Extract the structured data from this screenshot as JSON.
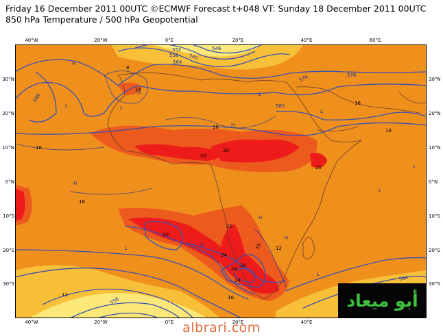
{
  "header": {
    "line1": "Friday 16 December 2011 00UTC ©ECMWF Forecast t+048 VT: Sunday 18 December 2011 00UTC",
    "line2": "850 hPa Temperature / 500 hPa Geopotential"
  },
  "axes": {
    "lon_labels": [
      "40°W",
      "20°W",
      "0°E",
      "20°E",
      "40°E",
      "60°E"
    ],
    "lat_labels": [
      "30°N",
      "20°N",
      "10°N",
      "0°N",
      "10°S",
      "20°S",
      "30°S"
    ]
  },
  "colors": {
    "background_field": "#f0901c",
    "warm_field": "#ec5a1e",
    "hot_field": "#ee1b1b",
    "cool_field": "#f8c038",
    "cold_field": "#fbe878",
    "contour": "#3a4fb0",
    "coast": "#6a3a2a"
  },
  "contour_labels": {
    "c540": "540",
    "c546": "546",
    "c552": "552",
    "c558": "558",
    "c564": "564",
    "c570": "570",
    "c576": "576",
    "c582": "582",
    "c588": "588",
    "c564b": "564",
    "c558b": "558"
  },
  "temperature_labels": [
    "16",
    "16",
    "16",
    "16",
    "16",
    "16",
    "16",
    "20",
    "20",
    "20",
    "20",
    "20",
    "24",
    "24",
    "24",
    "28",
    "12",
    "12",
    "8",
    "16"
  ],
  "pressure_labels": {
    "high": "H",
    "low": "L"
  },
  "watermark": {
    "logo_text": "أبو ميعاد",
    "site": "albrari.com"
  }
}
